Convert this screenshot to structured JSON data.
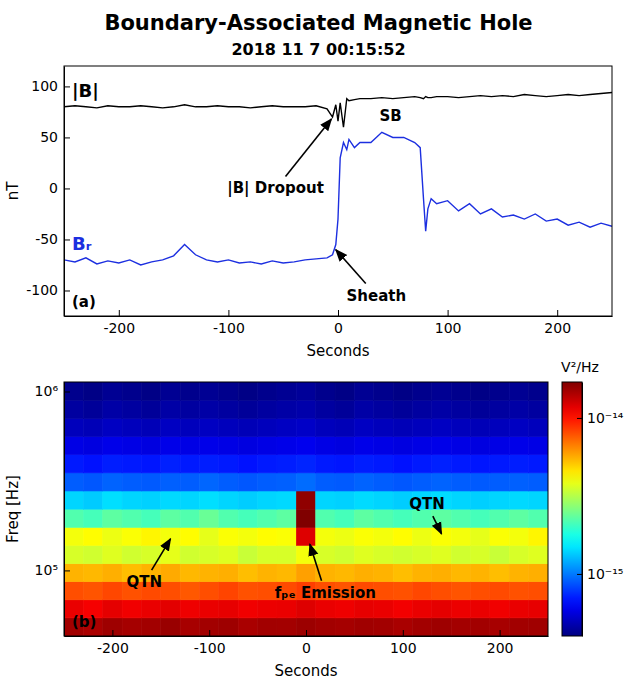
{
  "title": "Boundary-Associated Magnetic Hole",
  "subtitle": "2018 11 7 00:15:52",
  "chart_data": [
    {
      "type": "line",
      "panel_label": "(a)",
      "x_label": "Seconds",
      "y_label": "nT",
      "x": [
        -250,
        -240,
        -230,
        -220,
        -210,
        -200,
        -190,
        -180,
        -170,
        -160,
        -150,
        -140,
        -130,
        -120,
        -110,
        -100,
        -90,
        -80,
        -70,
        -60,
        -50,
        -40,
        -30,
        -20,
        -10,
        -5,
        -2,
        0,
        2,
        5,
        8,
        10,
        15,
        20,
        30,
        40,
        50,
        60,
        70,
        75,
        78,
        80,
        82,
        85,
        90,
        100,
        110,
        120,
        130,
        140,
        150,
        160,
        170,
        180,
        190,
        200,
        210,
        220,
        230,
        240,
        250
      ],
      "xlim": [
        -250,
        250
      ],
      "xticks": [
        -200,
        -100,
        0,
        100,
        200
      ],
      "ylim": [
        -125,
        120
      ],
      "yticks": [
        -100,
        -50,
        0,
        50,
        100
      ],
      "series": [
        {
          "name": "|B|",
          "color": "#000000",
          "values": [
            80,
            81,
            80,
            79,
            81,
            80,
            80,
            81,
            80,
            79,
            80,
            82,
            80,
            80,
            81,
            80,
            80,
            79,
            80,
            81,
            80,
            80,
            80,
            81,
            78,
            70,
            82,
            66,
            84,
            60,
            88,
            86,
            87,
            88,
            88,
            89,
            88,
            89,
            90,
            89,
            88,
            90,
            89,
            89,
            90,
            90,
            89,
            90,
            91,
            90,
            91,
            90,
            92,
            91,
            90,
            91,
            92,
            91,
            92,
            93,
            94
          ]
        },
        {
          "name": "Bᵣ",
          "color": "#1c2fe0",
          "values": [
            -70,
            -72,
            -68,
            -74,
            -71,
            -73,
            -70,
            -75,
            -72,
            -70,
            -66,
            -55,
            -65,
            -70,
            -72,
            -70,
            -73,
            -72,
            -74,
            -71,
            -73,
            -72,
            -70,
            -69,
            -68,
            -65,
            -55,
            -30,
            30,
            45,
            38,
            48,
            40,
            45,
            45,
            55,
            50,
            50,
            45,
            40,
            -10,
            -42,
            -20,
            -10,
            -15,
            -12,
            -22,
            -15,
            -25,
            -20,
            -28,
            -26,
            -30,
            -25,
            -32,
            -30,
            -36,
            -33,
            -38,
            -34,
            -37
          ]
        }
      ],
      "annotations": [
        {
          "text": "|B| Dropout",
          "x": -57,
          "y": 0,
          "arrow_to": [
            -6,
            68
          ]
        },
        {
          "text": "Sheath",
          "x": 35,
          "y": -105,
          "arrow_to": [
            -2,
            -60
          ]
        },
        {
          "text": "SB",
          "x": 48,
          "y": 71
        }
      ]
    },
    {
      "type": "heatmap",
      "panel_label": "(b)",
      "x_label": "Seconds",
      "y_label": "Freq [Hz]",
      "log": "y",
      "x_bins": [
        -250,
        -230,
        -210,
        -190,
        -170,
        -150,
        -130,
        -110,
        -90,
        -70,
        -50,
        -30,
        -10,
        10,
        30,
        50,
        70,
        90,
        110,
        130,
        150,
        170,
        190,
        210,
        230,
        250
      ],
      "y_bins": [
        43000,
        54300,
        68500,
        86500,
        109000,
        138000,
        174000,
        220000,
        278000,
        351000,
        444000,
        560000,
        708000,
        894000,
        1130000
      ],
      "cells": [
        [
          1.5e-14,
          1.45e-14,
          1.52e-14,
          1.48e-14,
          1.5e-14,
          1.55e-14,
          1.47e-14,
          1.5e-14,
          1.52e-14,
          1.46e-14,
          1.5e-14,
          1.49e-14,
          1.53e-14,
          1.5e-14,
          1.48e-14,
          1.51e-14,
          1.5e-14,
          1.46e-14,
          1.5e-14,
          1.52e-14,
          1.49e-14,
          1.5e-14,
          1.47e-14,
          1.5e-14,
          1.51e-14
        ],
        [
          1.15e-14,
          1.1e-14,
          1.17e-14,
          1.12e-14,
          1.15e-14,
          1.18e-14,
          1.13e-14,
          1.15e-14,
          1.16e-14,
          1.12e-14,
          1.14e-14,
          1.15e-14,
          1.2e-14,
          1.15e-14,
          1.13e-14,
          1.16e-14,
          1.15e-14,
          1.11e-14,
          1.15e-14,
          1.17e-14,
          1.14e-14,
          1.15e-14,
          1.12e-14,
          1.15e-14,
          1.16e-14
        ],
        [
          8e-15,
          7.8e-15,
          8.2e-15,
          7.9e-15,
          8.1e-15,
          8e-15,
          7.7e-15,
          8e-15,
          8.3e-15,
          7.9e-15,
          8e-15,
          8.1e-15,
          8.5e-15,
          8e-15,
          7.8e-15,
          8.1e-15,
          8e-15,
          7.9e-15,
          8.2e-15,
          8e-15,
          7.8e-15,
          8e-15,
          8.1e-15,
          7.9e-15,
          8e-15
        ],
        [
          5.5e-15,
          5.4e-15,
          5.6e-15,
          5.3e-15,
          5.5e-15,
          5.7e-15,
          5.4e-15,
          5.5e-15,
          5.6e-15,
          5.3e-15,
          5.5e-15,
          5.4e-15,
          5.9e-15,
          5.5e-15,
          5.4e-15,
          5.6e-15,
          5.5e-15,
          5.3e-15,
          5.5e-15,
          5.6e-15,
          5.4e-15,
          5.5e-15,
          5.3e-15,
          5.5e-15,
          5.6e-15
        ],
        [
          3.6e-15,
          3.5e-15,
          3.7e-15,
          3.5e-15,
          3.6e-15,
          3.8e-15,
          3.5e-15,
          3.6e-15,
          3.7e-15,
          3.4e-15,
          3.6e-15,
          3.6e-15,
          4e-15,
          3.6e-15,
          3.5e-15,
          3.7e-15,
          3.6e-15,
          3.5e-15,
          3.6e-15,
          3.7e-15,
          3.5e-15,
          3.6e-15,
          3.4e-15,
          3.6e-15,
          3.7e-15
        ],
        [
          4e-15,
          4.2e-15,
          3.9e-15,
          4.1e-15,
          4.3e-15,
          4e-15,
          4.2e-15,
          3.8e-15,
          4.1e-15,
          4e-15,
          4.2e-15,
          4.1e-15,
          1.2e-14,
          4e-15,
          3.9e-15,
          4.1e-15,
          4e-15,
          4.2e-15,
          3.9e-15,
          4.1e-15,
          4e-15,
          3.8e-15,
          4.1e-15,
          4e-15,
          4.3e-15
        ],
        [
          2.2e-15,
          2.1e-15,
          2.3e-15,
          2.2e-15,
          2.1e-15,
          2.3e-15,
          2.2e-15,
          2.4e-15,
          2.2e-15,
          2.1e-15,
          2.2e-15,
          2.3e-15,
          1.7e-14,
          2.2e-15,
          2.1e-15,
          2.3e-15,
          2.2e-15,
          2.1e-15,
          2.2e-15,
          2.3e-15,
          2.2e-15,
          2.1e-15,
          2.2e-15,
          2.3e-15,
          2.2e-15
        ],
        [
          1.4e-15,
          1.35e-15,
          1.45e-15,
          1.4e-15,
          1.38e-15,
          1.42e-15,
          1.4e-15,
          1.45e-15,
          1.4e-15,
          1.36e-15,
          1.4e-15,
          1.42e-15,
          1.6e-14,
          1.4e-15,
          1.38e-15,
          1.43e-15,
          1.4e-15,
          1.36e-15,
          1.4e-15,
          1.44e-15,
          1.4e-15,
          1.37e-15,
          1.4e-15,
          1.42e-15,
          1.4e-15
        ],
        [
          9e-16,
          8.8e-16,
          9.2e-16,
          9e-16,
          8.9e-16,
          9.1e-16,
          9e-16,
          9.3e-16,
          9e-16,
          8.8e-16,
          9e-16,
          9.1e-16,
          9.5e-16,
          9e-16,
          8.9e-16,
          9.2e-16,
          9e-16,
          8.8e-16,
          9e-16,
          9.2e-16,
          9e-16,
          8.9e-16,
          9e-16,
          9.1e-16,
          9e-16
        ],
        [
          7e-16,
          6.8e-16,
          7.1e-16,
          7e-16,
          6.9e-16,
          7.2e-16,
          7e-16,
          7.1e-16,
          7e-16,
          6.8e-16,
          7e-16,
          7.1e-16,
          7.3e-16,
          7e-16,
          6.9e-16,
          7.1e-16,
          7e-16,
          6.8e-16,
          7e-16,
          7.2e-16,
          7e-16,
          6.9e-16,
          7e-16,
          7.1e-16,
          7e-16
        ],
        [
          5.8e-16,
          5.7e-16,
          5.9e-16,
          5.8e-16,
          5.7e-16,
          5.9e-16,
          5.8e-16,
          5.9e-16,
          5.8e-16,
          5.7e-16,
          5.8e-16,
          5.9e-16,
          6e-16,
          5.8e-16,
          5.7e-16,
          5.9e-16,
          5.8e-16,
          5.7e-16,
          5.8e-16,
          5.9e-16,
          5.8e-16,
          5.7e-16,
          5.8e-16,
          5.9e-16,
          5.8e-16
        ],
        [
          5e-16,
          4.9e-16,
          5.1e-16,
          5e-16,
          4.9e-16,
          5.1e-16,
          5e-16,
          5.1e-16,
          5e-16,
          4.9e-16,
          5e-16,
          5.1e-16,
          5.2e-16,
          5e-16,
          4.9e-16,
          5.1e-16,
          5e-16,
          4.9e-16,
          5e-16,
          5.1e-16,
          5e-16,
          4.9e-16,
          5e-16,
          5.1e-16,
          5e-16
        ],
        [
          4.5e-16,
          4.4e-16,
          4.6e-16,
          4.5e-16,
          4.4e-16,
          4.6e-16,
          4.5e-16,
          4.6e-16,
          4.5e-16,
          4.4e-16,
          4.5e-16,
          4.6e-16,
          4.7e-16,
          4.5e-16,
          4.4e-16,
          4.6e-16,
          4.5e-16,
          4.4e-16,
          4.5e-16,
          4.6e-16,
          4.5e-16,
          4.4e-16,
          4.5e-16,
          4.6e-16,
          4.5e-16
        ],
        [
          4.2e-16,
          4.1e-16,
          4.3e-16,
          4.2e-16,
          4.1e-16,
          4.3e-16,
          4.2e-16,
          4.3e-16,
          4.2e-16,
          4.1e-16,
          4.2e-16,
          4.3e-16,
          4.4e-16,
          4.2e-16,
          4.1e-16,
          4.3e-16,
          4.2e-16,
          4.1e-16,
          4.2e-16,
          4.3e-16,
          4.2e-16,
          4.1e-16,
          4.2e-16,
          4.3e-16,
          4.2e-16
        ]
      ],
      "xlim": [
        -250,
        250
      ],
      "xticks": [
        -200,
        -100,
        0,
        100,
        200
      ],
      "ylim": [
        43000,
        1130000
      ],
      "yticks": [
        {
          "value": 100000,
          "label": "10⁵"
        },
        {
          "value": 1000000,
          "label": "10⁶"
        }
      ],
      "colorbar": {
        "label": "V²/Hz",
        "log": true,
        "range": [
          4e-16,
          1.7e-14
        ],
        "ticks": [
          {
            "value": 1e-15,
            "label": "10⁻¹⁵"
          },
          {
            "value": 1e-14,
            "label": "10⁻¹⁴"
          }
        ]
      },
      "annotations": [
        {
          "text": "QTN",
          "x": -167,
          "y": 86000,
          "arrow_to": [
            -140,
            150000
          ]
        },
        {
          "text": "QTN",
          "x": 125,
          "y": 235000,
          "arrow_to": [
            140,
            160000
          ]
        },
        {
          "text": "fₚₑ Emission",
          "x": 20,
          "y": 75000,
          "arrow_to": [
            4,
            140000
          ]
        }
      ]
    }
  ]
}
